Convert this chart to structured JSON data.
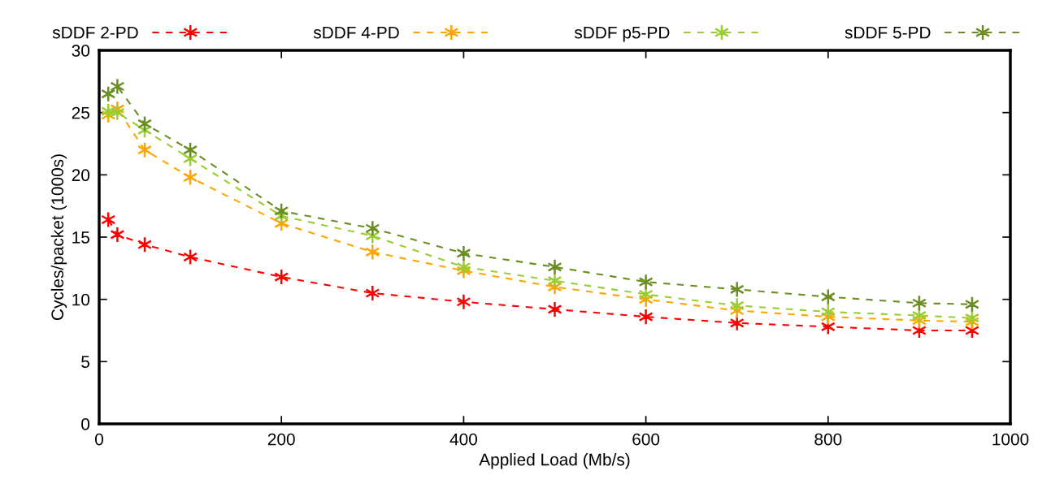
{
  "chart_data": {
    "type": "line",
    "xlabel": "Applied Load (Mb/s)",
    "ylabel": "Cycles/packet (1000s)",
    "x": [
      10,
      20,
      50,
      100,
      200,
      300,
      400,
      500,
      600,
      700,
      800,
      900,
      958
    ],
    "series": [
      {
        "name": "sDDF 2-PD",
        "color": "#ff0000",
        "values": [
          16.4,
          15.2,
          14.4,
          13.4,
          11.8,
          10.5,
          9.8,
          9.2,
          8.6,
          8.1,
          7.8,
          7.5,
          7.5
        ]
      },
      {
        "name": "sDDF 4-PD",
        "color": "#ffa500",
        "values": [
          24.8,
          25.3,
          22.0,
          19.8,
          16.1,
          13.8,
          12.3,
          11.0,
          10.0,
          9.1,
          8.6,
          8.3,
          8.2
        ]
      },
      {
        "name": "sDDF p5-PD",
        "color": "#9acd32",
        "values": [
          25.1,
          25.0,
          23.6,
          21.3,
          16.7,
          15.1,
          12.6,
          11.5,
          10.4,
          9.5,
          9.0,
          8.7,
          8.5
        ]
      },
      {
        "name": "sDDF 5-PD",
        "color": "#6b8e23",
        "values": [
          26.5,
          27.1,
          24.1,
          22.0,
          17.1,
          15.7,
          13.7,
          12.6,
          11.4,
          10.8,
          10.2,
          9.7,
          9.6
        ]
      }
    ],
    "xlim": [
      0,
      1000
    ],
    "xticks": [
      0,
      200,
      400,
      600,
      800,
      1000
    ],
    "ylim": [
      0,
      30
    ],
    "yticks": [
      0,
      5,
      10,
      15,
      20,
      25,
      30
    ],
    "grid": false,
    "legend": "top",
    "marker": "cross",
    "line_style": "dashed"
  }
}
